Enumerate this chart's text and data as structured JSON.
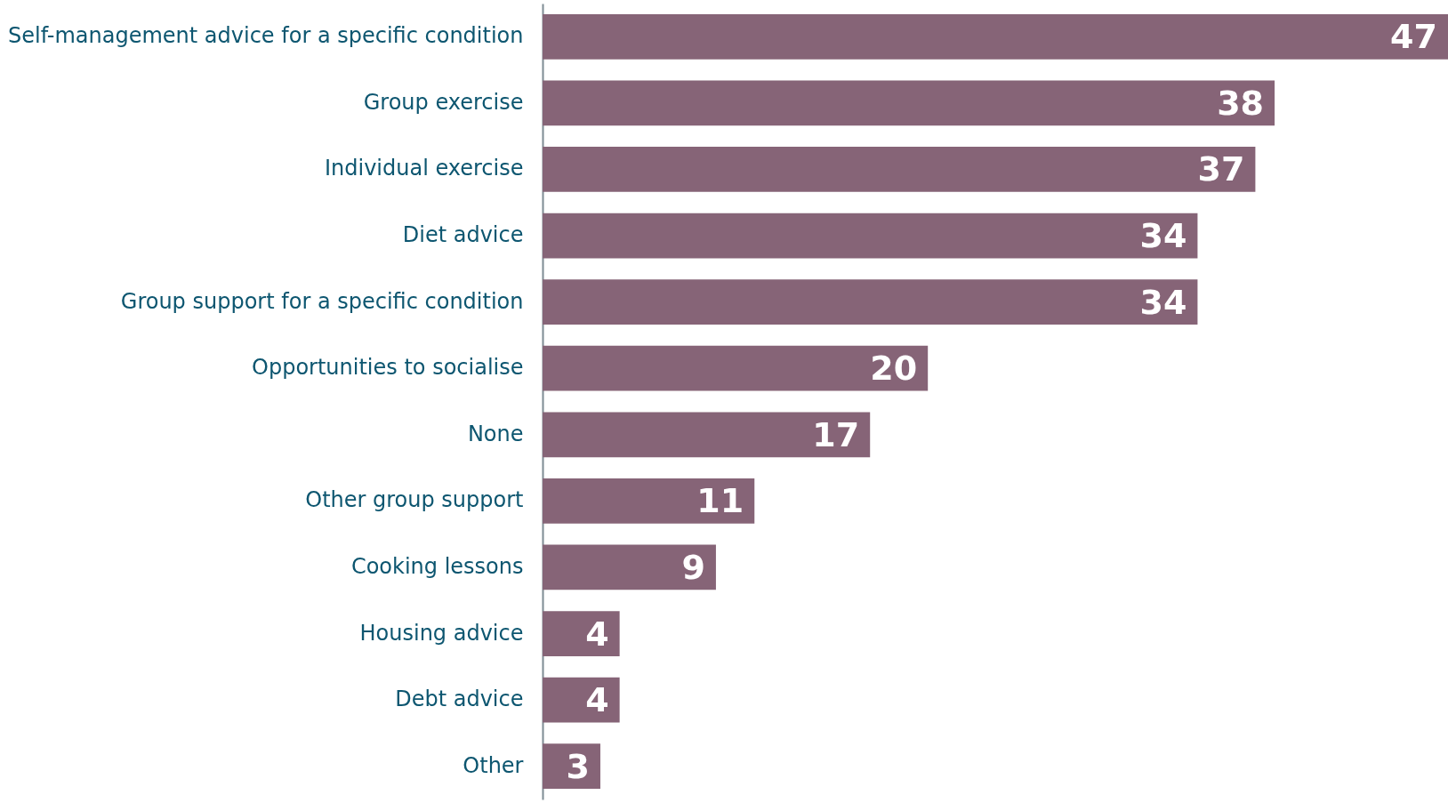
{
  "chart_data": {
    "type": "bar",
    "orientation": "horizontal",
    "data_labels": true,
    "color": "#866477",
    "categories": [
      "Self-management advice for a specific condition",
      "Group exercise",
      "Individual exercise",
      "Diet advice",
      "Group support for a specific condition",
      "Opportunities to socialise",
      "None",
      "Other group support",
      "Cooking lessons",
      "Housing advice",
      "Debt advice",
      "Other"
    ],
    "values": [
      47,
      38,
      37,
      34,
      34,
      20,
      17,
      11,
      9,
      4,
      4,
      3
    ]
  }
}
